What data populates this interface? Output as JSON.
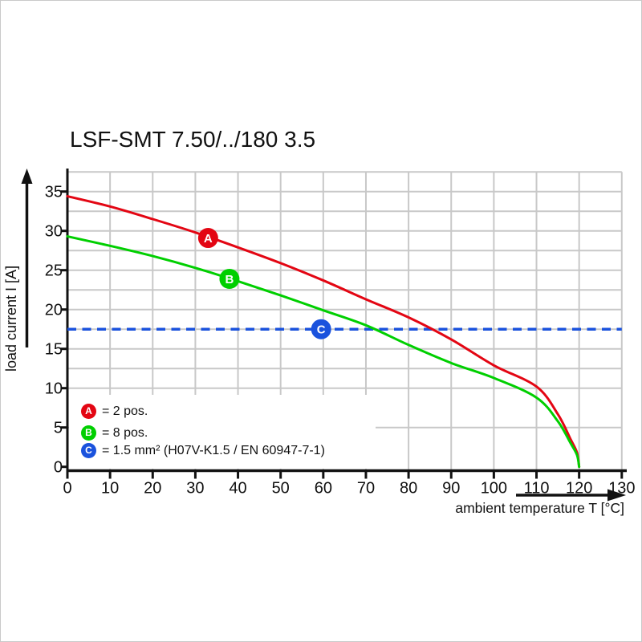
{
  "title": "LSF-SMT 7.50/../180 3.5",
  "chart_data": {
    "type": "line",
    "title": "LSF-SMT 7.50/../180 3.5",
    "xlabel": "ambient temperature T [°C]",
    "ylabel": "load current I [A]",
    "xlim": [
      0,
      130
    ],
    "ylim": [
      0,
      37.5
    ],
    "x_ticks": [
      0,
      10,
      20,
      30,
      40,
      50,
      60,
      70,
      80,
      90,
      100,
      110,
      120,
      130
    ],
    "y_ticks": [
      0,
      5,
      10,
      15,
      20,
      25,
      30,
      35
    ],
    "grid": {
      "color": "#c8c8c8",
      "x_lines": [
        10,
        20,
        30,
        40,
        50,
        60,
        70,
        80,
        90,
        100,
        110,
        120,
        130
      ],
      "y_lines": [
        5,
        10,
        12.5,
        15,
        17.5,
        20,
        22.5,
        25,
        27.5,
        30,
        32.5,
        35,
        37.5
      ]
    },
    "series": [
      {
        "name": "2 pos.",
        "marker": "A",
        "color": "#e30613",
        "style": "solid",
        "points": [
          [
            0,
            34.4
          ],
          [
            10,
            33.1
          ],
          [
            20,
            31.5
          ],
          [
            30,
            29.8
          ],
          [
            40,
            27.9
          ],
          [
            50,
            25.9
          ],
          [
            60,
            23.7
          ],
          [
            70,
            21.3
          ],
          [
            80,
            19.0
          ],
          [
            90,
            16.2
          ],
          [
            100,
            12.9
          ],
          [
            110,
            10.2
          ],
          [
            115,
            6.7
          ],
          [
            118,
            3.5
          ],
          [
            119.5,
            1.8
          ],
          [
            120,
            0
          ]
        ],
        "marker_at": [
          33,
          29.1
        ]
      },
      {
        "name": "8 pos.",
        "marker": "B",
        "color": "#00cf00",
        "style": "solid",
        "points": [
          [
            0,
            29.3
          ],
          [
            10,
            28.1
          ],
          [
            20,
            26.8
          ],
          [
            30,
            25.3
          ],
          [
            40,
            23.6
          ],
          [
            50,
            21.8
          ],
          [
            60,
            19.9
          ],
          [
            70,
            18.0
          ],
          [
            80,
            15.5
          ],
          [
            90,
            13.2
          ],
          [
            100,
            11.3
          ],
          [
            110,
            8.8
          ],
          [
            115,
            5.8
          ],
          [
            118,
            3.0
          ],
          [
            119.5,
            1.5
          ],
          [
            120,
            0
          ]
        ],
        "marker_at": [
          38,
          23.9
        ]
      },
      {
        "name": "1.5 mm² (H07V-K1.5 / EN 60947-7-1)",
        "marker": "C",
        "color": "#1a52dd",
        "style": "dashed",
        "points": [
          [
            0,
            17.5
          ],
          [
            130,
            17.5
          ]
        ],
        "marker_at": [
          59.5,
          17.5
        ]
      }
    ],
    "legend": {
      "position": "bottom-left-inside",
      "items": [
        {
          "symbol": "A",
          "color": "#e30613",
          "text": "= 2 pos."
        },
        {
          "symbol": "B",
          "color": "#00cf00",
          "text": "= 8 pos."
        },
        {
          "symbol": "C",
          "color": "#1a52dd",
          "text": "= 1.5 mm² (H07V-K1.5 / EN 60947-7-1)"
        }
      ]
    }
  }
}
